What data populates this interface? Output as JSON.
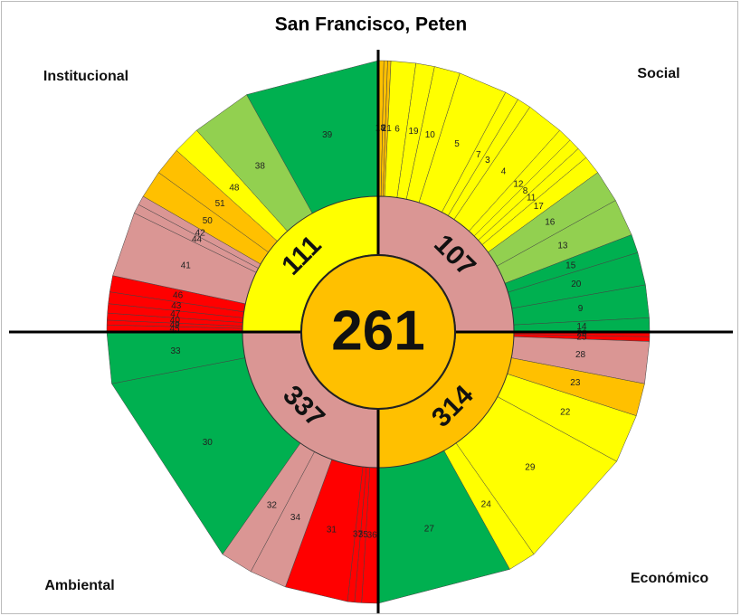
{
  "chart_data": {
    "type": "sunburst",
    "title": "San Francisco, Peten",
    "center_value": 261,
    "center_color": "#ffc000",
    "quadrants": [
      {
        "name": "Social",
        "score": 107,
        "color": "#da9694",
        "segments": [
          {
            "label": "18",
            "value": 1.2,
            "color": "#ffc000"
          },
          {
            "label": "2",
            "value": 0.8,
            "color": "#ffc000"
          },
          {
            "label": "21",
            "value": 0.7,
            "color": "#ffc000"
          },
          {
            "label": "6",
            "value": 5.3,
            "color": "#ffff00"
          },
          {
            "label": "19",
            "value": 4,
            "color": "#ffff00"
          },
          {
            "label": "10",
            "value": 5.5,
            "color": "#ffff00"
          },
          {
            "label": "5",
            "value": 10.5,
            "color": "#ffff00"
          },
          {
            "label": "7",
            "value": 3,
            "color": "#ffff00"
          },
          {
            "label": "3",
            "value": 3,
            "color": "#ffff00"
          },
          {
            "label": "4",
            "value": 8,
            "color": "#ffff00"
          },
          {
            "label": "12",
            "value": 3,
            "color": "#ffff00"
          },
          {
            "label": "8",
            "value": 2.5,
            "color": "#ffff00"
          },
          {
            "label": "11",
            "value": 2.5,
            "color": "#ffff00"
          },
          {
            "label": "17",
            "value": 4,
            "color": "#ffff00"
          },
          {
            "label": "16",
            "value": 7,
            "color": "#92d050"
          },
          {
            "label": "13",
            "value": 8,
            "color": "#92d050"
          },
          {
            "label": "15",
            "value": 4,
            "color": "#00b050"
          },
          {
            "label": "20",
            "value": 7,
            "color": "#00b050"
          },
          {
            "label": "9",
            "value": 7,
            "color": "#00b050"
          },
          {
            "label": "14",
            "value": 3,
            "color": "#00b050"
          }
        ]
      },
      {
        "name": "Económico",
        "score": 314,
        "color": "#ffc000",
        "segments": [
          {
            "label": "26",
            "value": 1,
            "color": "#ff0000"
          },
          {
            "label": "25",
            "value": 1,
            "color": "#ff0000"
          },
          {
            "label": "28",
            "value": 9,
            "color": "#da9694"
          },
          {
            "label": "23",
            "value": 7,
            "color": "#ffc000"
          },
          {
            "label": "22",
            "value": 10.5,
            "color": "#ffff00"
          },
          {
            "label": "29",
            "value": 26.5,
            "color": "#ffff00"
          },
          {
            "label": "24",
            "value": 6,
            "color": "#ffff00"
          },
          {
            "label": "27",
            "value": 29,
            "color": "#00b050"
          }
        ]
      },
      {
        "name": "Ambiental",
        "score": 337,
        "color": "#da9694",
        "segments": [
          {
            "label": "36",
            "value": 3.5,
            "color": "#ff0000"
          },
          {
            "label": "35",
            "value": 1.5,
            "color": "#ff0000"
          },
          {
            "label": "37",
            "value": 1.5,
            "color": "#ff0000"
          },
          {
            "label": "31",
            "value": 13.5,
            "color": "#ff0000"
          },
          {
            "label": "34",
            "value": 8,
            "color": "#da9694"
          },
          {
            "label": "32",
            "value": 7,
            "color": "#da9694"
          },
          {
            "label": "30",
            "value": 44,
            "color": "#00b050"
          },
          {
            "label": "33",
            "value": 11,
            "color": "#00b050"
          }
        ]
      },
      {
        "name": "Institucional",
        "score": 111,
        "color": "#ffff00",
        "segments": [
          {
            "label": "45",
            "value": 1.5,
            "color": "#ff0000"
          },
          {
            "label": "49",
            "value": 1,
            "color": "#ff0000"
          },
          {
            "label": "40",
            "value": 1.5,
            "color": "#ff0000"
          },
          {
            "label": "47",
            "value": 2,
            "color": "#ff0000"
          },
          {
            "label": "43",
            "value": 2.5,
            "color": "#ff0000"
          },
          {
            "label": "46",
            "value": 3.5,
            "color": "#ff0000"
          },
          {
            "label": "41",
            "value": 14,
            "color": "#da9694"
          },
          {
            "label": "44",
            "value": 2,
            "color": "#da9694"
          },
          {
            "label": "42",
            "value": 2,
            "color": "#da9694"
          },
          {
            "label": "50",
            "value": 6,
            "color": "#ffc000"
          },
          {
            "label": "51",
            "value": 6,
            "color": "#ffc000"
          },
          {
            "label": "48",
            "value": 6,
            "color": "#ffff00"
          },
          {
            "label": "38",
            "value": 13,
            "color": "#92d050"
          },
          {
            "label": "39",
            "value": 29,
            "color": "#00b050"
          }
        ]
      }
    ]
  }
}
